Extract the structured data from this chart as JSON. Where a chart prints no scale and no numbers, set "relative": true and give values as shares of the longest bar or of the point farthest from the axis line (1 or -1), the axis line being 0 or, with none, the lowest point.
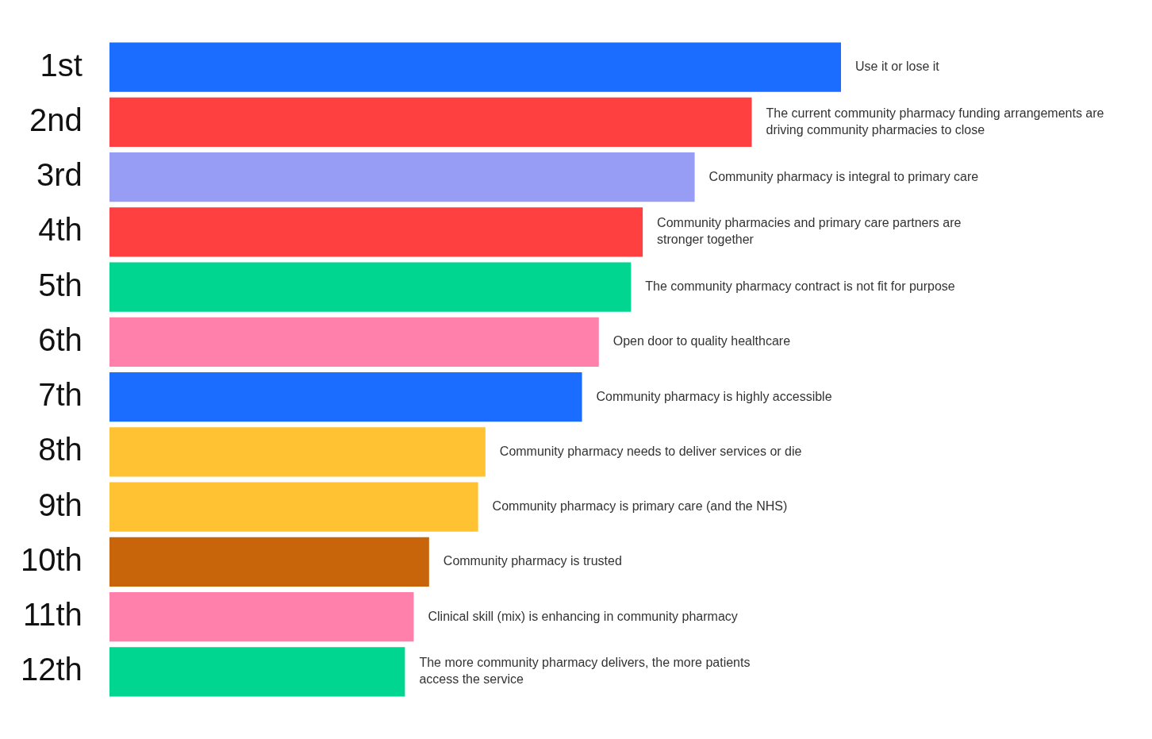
{
  "chart_data": {
    "type": "bar",
    "orientation": "horizontal",
    "relative": true,
    "categories": [
      "1st",
      "2nd",
      "3rd",
      "4th",
      "5th",
      "6th",
      "7th",
      "8th",
      "9th",
      "10th",
      "11th",
      "12th"
    ],
    "values": [
      1,
      0.878,
      0.8,
      0.729,
      0.713,
      0.669,
      0.646,
      0.514,
      0.504,
      0.437,
      0.416,
      0.404
    ],
    "colors": [
      "#1a6dff",
      "#ff4040",
      "#979cf5",
      "#ff4040",
      "#00d68f",
      "#ff80aa",
      "#1a6dff",
      "#ffc233",
      "#ffc233",
      "#c8640a",
      "#ff80aa",
      "#00d68f"
    ],
    "annotations": [
      {
        "text": "Use it or lose it",
        "x": 1,
        "y": "1st"
      },
      {
        "text": "The current community pharmacy funding arrangements are driving community pharmacies to close",
        "x": 0.878,
        "y": "2nd"
      },
      {
        "text": "Community pharmacy is integral to primary care",
        "x": 0.8,
        "y": "3rd"
      },
      {
        "text": "Community pharmacies and primary care partners are stronger together",
        "x": 0.729,
        "y": "4th"
      },
      {
        "text": "The community pharmacy contract is not fit for purpose",
        "x": 0.713,
        "y": "5th"
      },
      {
        "text": "Open door to quality healthcare",
        "x": 0.669,
        "y": "6th"
      },
      {
        "text": "Community pharmacy is highly accessible",
        "x": 0.646,
        "y": "7th"
      },
      {
        "text": "Community pharmacy needs to deliver services or die",
        "x": 0.514,
        "y": "8th"
      },
      {
        "text": "Community pharmacy is primary care (and the NHS)",
        "x": 0.504,
        "y": "9th"
      },
      {
        "text": "Community pharmacy is trusted",
        "x": 0.437,
        "y": "10th"
      },
      {
        "text": "Clinical skill (mix) is enhancing in community pharmacy",
        "x": 0.416,
        "y": "11th"
      },
      {
        "text": "The more community pharmacy delivers, the more patients access the service",
        "x": 0.404,
        "y": "12th"
      }
    ],
    "legend": false
  }
}
